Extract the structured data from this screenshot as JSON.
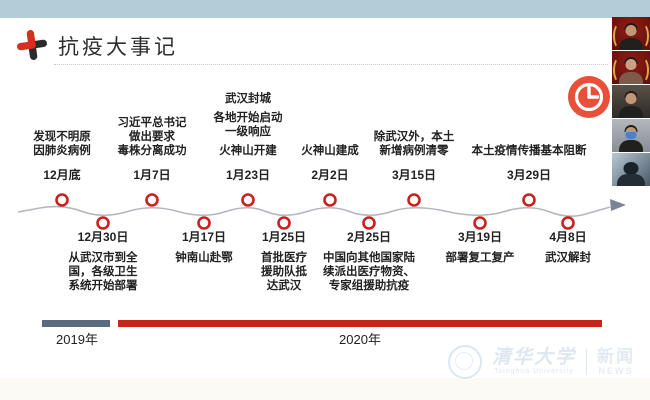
{
  "header": {
    "title": "抗疫大事记",
    "icon": "medical-cross-icon"
  },
  "colors": {
    "accent_red": "#c9241c",
    "marker_red": "#cc1f1f",
    "clock_red": "#e8503a",
    "bar_2019": "#5a6b80",
    "timeline_gray": "#b3b6be",
    "top_strip": "#b3cdd8"
  },
  "timeline": {
    "top_events": [
      {
        "lines": [
          "发现不明原",
          "因肺炎病例"
        ],
        "date": "12月底"
      },
      {
        "lines": [
          "习近平总书记",
          "做出要求",
          "毒株分离成功"
        ],
        "date": "1月7日"
      },
      {
        "lines": [
          "武汉封城",
          "",
          "各地开始启动",
          "一级响应",
          "",
          "火神山开建"
        ],
        "date": "1月23日"
      },
      {
        "lines": [
          "火神山建成"
        ],
        "date": "2月2日"
      },
      {
        "lines": [
          "除武汉外，本土",
          "新增病例清零"
        ],
        "date": "3月15日"
      },
      {
        "lines": [
          "本土疫情传播基本阻断"
        ],
        "date": "3月29日"
      }
    ],
    "bottom_events": [
      {
        "date": "12月30日",
        "lines": [
          "从武汉市到全",
          "国，各级卫生",
          "系统开始部署"
        ]
      },
      {
        "date": "1月17日",
        "lines": [
          "钟南山赴鄂"
        ]
      },
      {
        "date": "1月25日",
        "lines": [
          "首批医疗",
          "援助队抵",
          "达武汉"
        ]
      },
      {
        "date": "2月25日",
        "lines": [
          "中国向其他国家陆",
          "续派出医疗物资、",
          "专家组援助抗疫"
        ]
      },
      {
        "date": "3月19日",
        "lines": [
          "部署复工复产"
        ]
      },
      {
        "date": "4月8日",
        "lines": [
          "武汉解封"
        ]
      }
    ]
  },
  "year_bars": {
    "y2019": "2019年",
    "y2020": "2020年"
  },
  "watermark": {
    "university_zh": "清华大学",
    "university_en": "Tsinghua University",
    "brand_zh": "新闻",
    "brand_en": "NEWS"
  },
  "video_panel": {
    "participant_count": 5
  }
}
